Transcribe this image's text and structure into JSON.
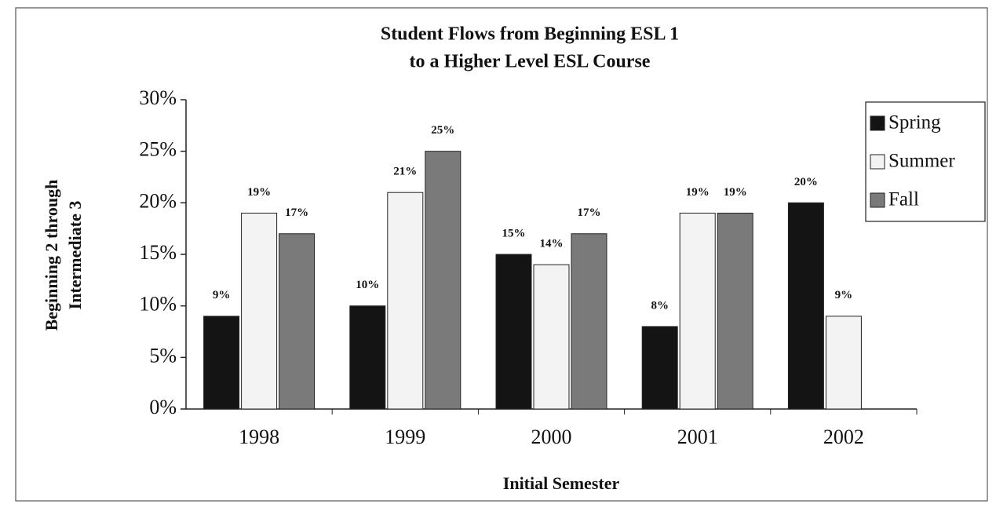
{
  "chart_data": {
    "type": "bar",
    "title": [
      "Student Flows from Beginning ESL 1",
      "to a Higher Level ESL Course"
    ],
    "x_label": "Initial Semester",
    "y_label": [
      "Beginning 2 through",
      "Intermediate 3"
    ],
    "categories": [
      "1998",
      "1999",
      "2000",
      "2001",
      "2002"
    ],
    "series": [
      {
        "name": "Spring",
        "color": "#141414",
        "values": [
          9,
          10,
          15,
          8,
          20
        ],
        "value_labels": [
          "9%",
          "10%",
          "15%",
          "8%",
          "20%"
        ]
      },
      {
        "name": "Summer",
        "color": "#f3f3f3",
        "values": [
          19,
          21,
          14,
          19,
          9
        ],
        "value_labels": [
          "19%",
          "21%",
          "14%",
          "19%",
          "9%"
        ]
      },
      {
        "name": "Fall",
        "color": "#7a7a7a",
        "values": [
          17,
          25,
          17,
          19,
          null
        ],
        "value_labels": [
          "17%",
          "25%",
          "17%",
          "19%",
          null
        ]
      }
    ],
    "ylim": [
      0,
      30
    ],
    "yticks": [
      {
        "value": 0,
        "label": "0%"
      },
      {
        "value": 5,
        "label": "5%"
      },
      {
        "value": 10,
        "label": "10%"
      },
      {
        "value": 15,
        "label": "15%"
      },
      {
        "value": 20,
        "label": "20%"
      },
      {
        "value": 25,
        "label": "25%"
      },
      {
        "value": 30,
        "label": "30%"
      }
    ],
    "grid": false,
    "legend": "upper right"
  }
}
